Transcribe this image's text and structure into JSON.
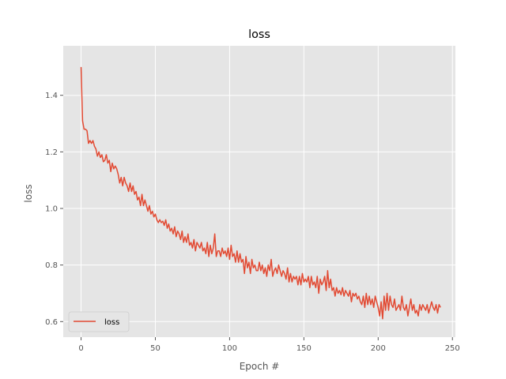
{
  "chart_data": {
    "type": "line",
    "title": "loss",
    "xlabel": "Epoch #",
    "ylabel": "loss",
    "xlim": [
      -12,
      252
    ],
    "ylim": [
      0.545,
      1.575
    ],
    "x_ticks": [
      0,
      50,
      100,
      150,
      200,
      250
    ],
    "x_tick_labels": [
      "0",
      "50",
      "100",
      "150",
      "200",
      "250"
    ],
    "y_ticks": [
      0.6,
      0.8,
      1.0,
      1.2,
      1.4
    ],
    "y_tick_labels": [
      "0.6",
      "0.8",
      "1.0",
      "1.2",
      "1.4"
    ],
    "grid": true,
    "legend_position": "lower-left",
    "series": [
      {
        "name": "loss",
        "color": "#E24A33",
        "values": [
          1.5,
          1.31,
          1.28,
          1.28,
          1.275,
          1.23,
          1.24,
          1.23,
          1.24,
          1.22,
          1.21,
          1.185,
          1.2,
          1.18,
          1.19,
          1.165,
          1.17,
          1.19,
          1.16,
          1.17,
          1.13,
          1.16,
          1.14,
          1.15,
          1.14,
          1.12,
          1.09,
          1.11,
          1.08,
          1.11,
          1.09,
          1.08,
          1.06,
          1.09,
          1.06,
          1.08,
          1.05,
          1.06,
          1.03,
          1.04,
          1.01,
          1.05,
          1.01,
          1.03,
          1.01,
          0.99,
          1.01,
          0.98,
          0.99,
          0.97,
          0.98,
          0.96,
          0.95,
          0.96,
          0.95,
          0.955,
          0.94,
          0.96,
          0.93,
          0.945,
          0.92,
          0.93,
          0.91,
          0.935,
          0.9,
          0.92,
          0.91,
          0.89,
          0.92,
          0.88,
          0.9,
          0.88,
          0.91,
          0.87,
          0.88,
          0.86,
          0.89,
          0.85,
          0.88,
          0.87,
          0.86,
          0.88,
          0.85,
          0.86,
          0.84,
          0.88,
          0.83,
          0.87,
          0.84,
          0.86,
          0.91,
          0.83,
          0.85,
          0.85,
          0.83,
          0.86,
          0.84,
          0.85,
          0.83,
          0.86,
          0.82,
          0.87,
          0.83,
          0.84,
          0.81,
          0.85,
          0.81,
          0.84,
          0.81,
          0.82,
          0.77,
          0.83,
          0.79,
          0.81,
          0.77,
          0.82,
          0.79,
          0.8,
          0.78,
          0.78,
          0.81,
          0.78,
          0.8,
          0.77,
          0.79,
          0.76,
          0.8,
          0.78,
          0.82,
          0.76,
          0.78,
          0.79,
          0.77,
          0.8,
          0.78,
          0.76,
          0.78,
          0.77,
          0.75,
          0.79,
          0.74,
          0.77,
          0.74,
          0.76,
          0.75,
          0.76,
          0.73,
          0.76,
          0.73,
          0.77,
          0.74,
          0.75,
          0.74,
          0.76,
          0.72,
          0.76,
          0.73,
          0.74,
          0.72,
          0.76,
          0.7,
          0.75,
          0.73,
          0.74,
          0.76,
          0.71,
          0.78,
          0.72,
          0.75,
          0.71,
          0.72,
          0.69,
          0.72,
          0.7,
          0.71,
          0.695,
          0.72,
          0.69,
          0.71,
          0.7,
          0.69,
          0.71,
          0.67,
          0.7,
          0.69,
          0.7,
          0.68,
          0.69,
          0.67,
          0.66,
          0.69,
          0.65,
          0.7,
          0.66,
          0.69,
          0.66,
          0.68,
          0.65,
          0.69,
          0.67,
          0.65,
          0.62,
          0.67,
          0.61,
          0.69,
          0.64,
          0.7,
          0.64,
          0.69,
          0.66,
          0.65,
          0.68,
          0.64,
          0.65,
          0.66,
          0.64,
          0.69,
          0.65,
          0.64,
          0.66,
          0.62,
          0.65,
          0.68,
          0.64,
          0.66,
          0.63,
          0.64,
          0.62,
          0.66,
          0.64,
          0.66,
          0.65,
          0.64,
          0.66,
          0.63,
          0.65,
          0.67,
          0.65,
          0.64,
          0.66,
          0.63,
          0.66,
          0.65
        ]
      }
    ]
  }
}
